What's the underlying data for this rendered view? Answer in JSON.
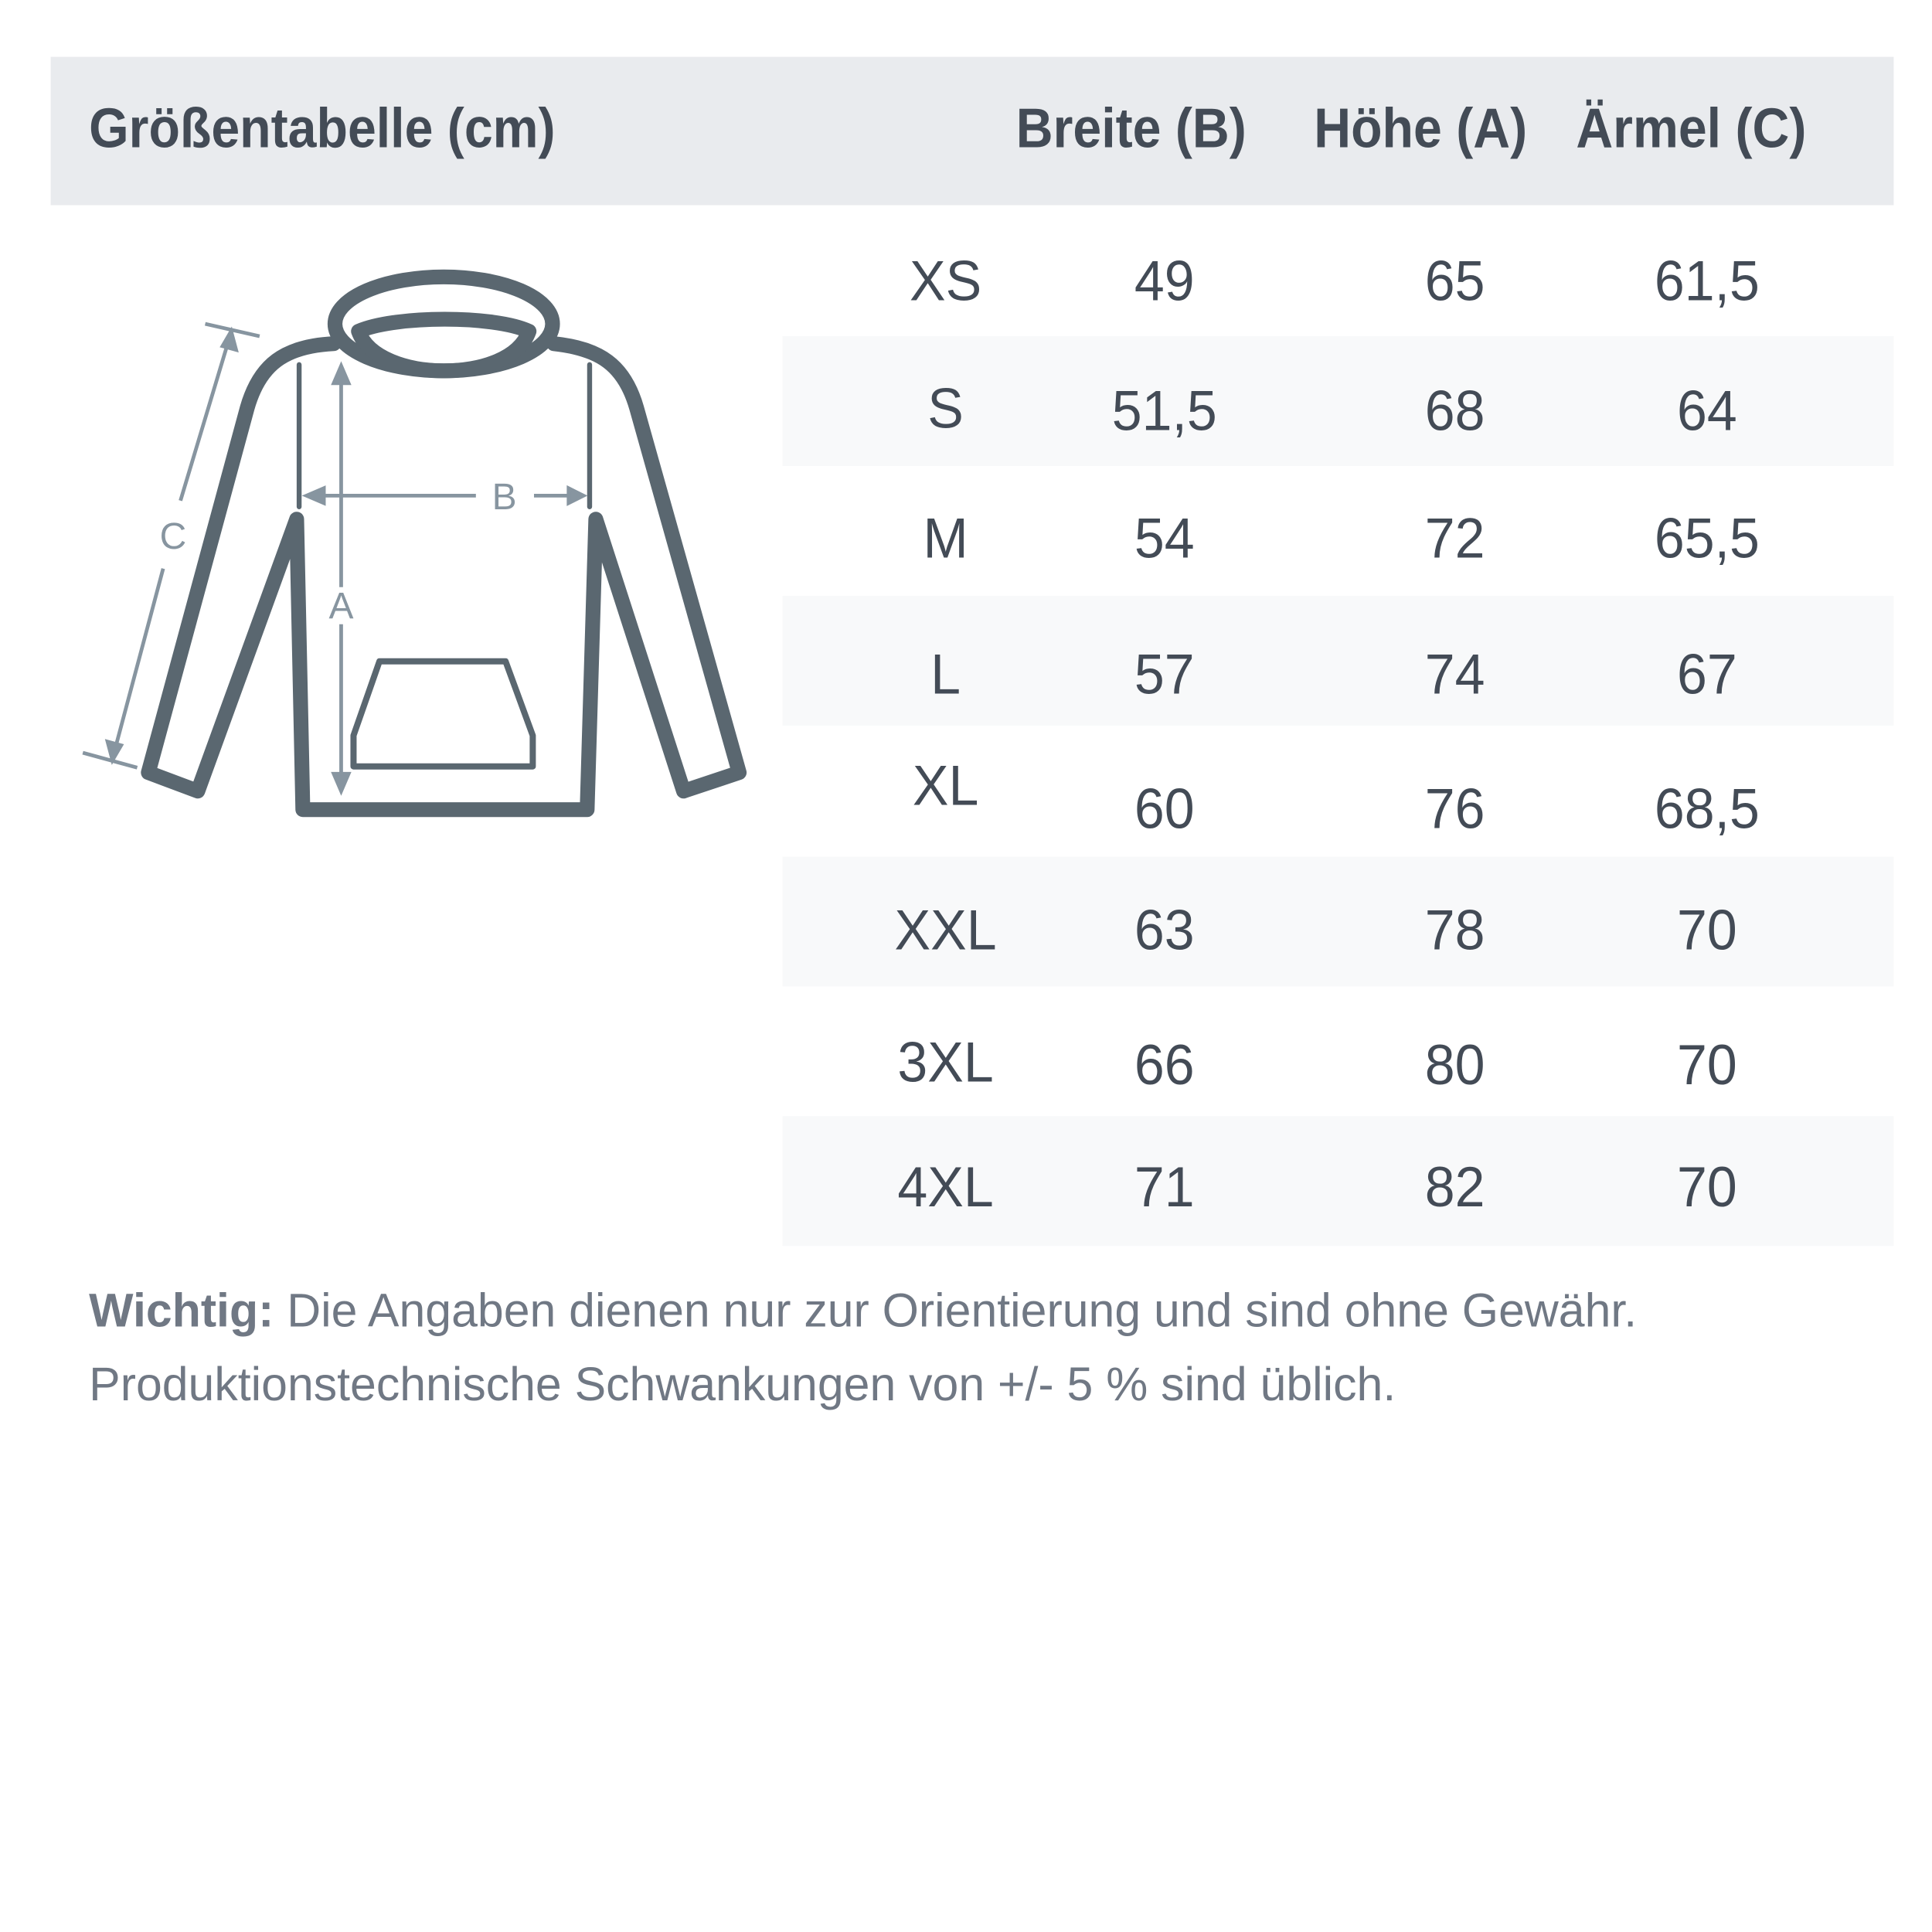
{
  "table": {
    "title": "Größentabelle (cm)",
    "columns": [
      "Breite (B)",
      "Höhe (A)",
      "Ärmel (C)"
    ],
    "rows": [
      {
        "size": "XS",
        "breite": "49",
        "hoehe": "65",
        "aermel": "61,5"
      },
      {
        "size": "S",
        "breite": "51,5",
        "hoehe": "68",
        "aermel": "64"
      },
      {
        "size": "M",
        "breite": "54",
        "hoehe": "72",
        "aermel": "65,5"
      },
      {
        "size": "L",
        "breite": "57",
        "hoehe": "74",
        "aermel": "67"
      },
      {
        "size": "XL",
        "breite": "60",
        "hoehe": "76",
        "aermel": "68,5"
      },
      {
        "size": "XXL",
        "breite": "63",
        "hoehe": "78",
        "aermel": "70"
      },
      {
        "size": "3XL",
        "breite": "66",
        "hoehe": "80",
        "aermel": "70"
      },
      {
        "size": "4XL",
        "breite": "71",
        "hoehe": "82",
        "aermel": "70"
      }
    ]
  },
  "diagram": {
    "label_a": "A",
    "label_b": "B",
    "label_c": "C"
  },
  "note": {
    "bold": "Wichtig:",
    "line1": " Die Angaben dienen nur zur Orientierung und sind ohne Gewähr.",
    "line2": "Produktionstechnische Schwankungen von +/- 5 % sind üblich."
  },
  "colors": {
    "header_bg": "#e9ebee",
    "row_shade": "#f8f9fa",
    "text": "#434b56",
    "hoodie": "#5a6770",
    "arrow": "#8795a0"
  }
}
